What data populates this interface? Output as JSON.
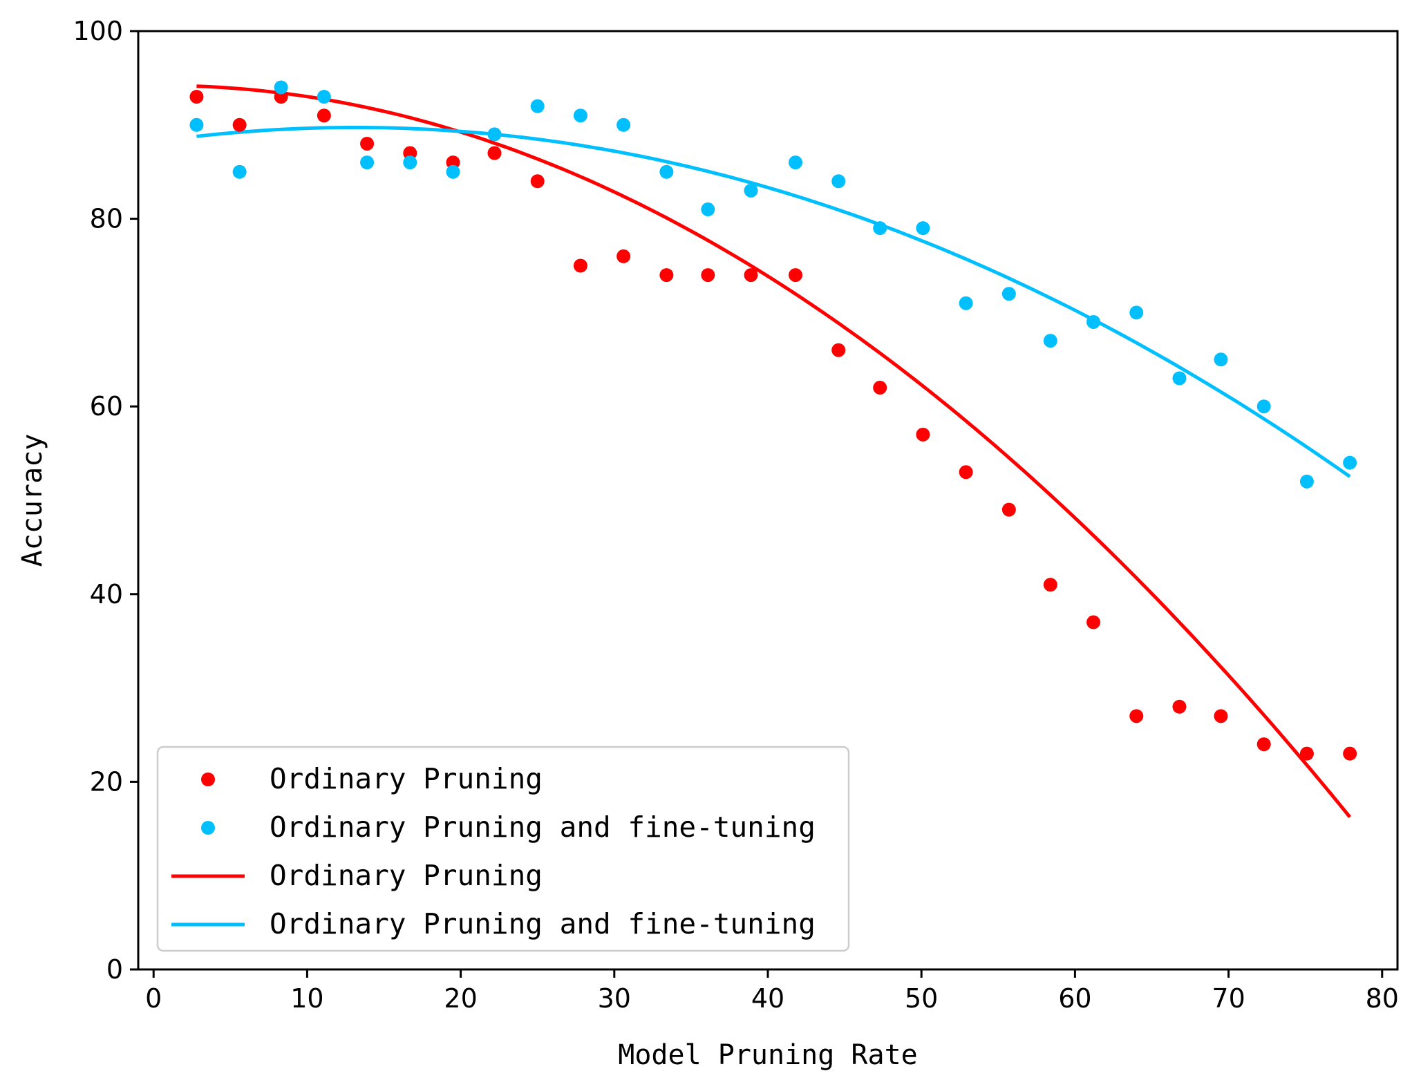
{
  "chart_data": {
    "type": "scatter",
    "title": "",
    "xlabel": "Model Pruning Rate",
    "ylabel": "Accuracy",
    "xlim": [
      -1,
      81
    ],
    "ylim": [
      0,
      100
    ],
    "xticks": [
      0,
      10,
      20,
      30,
      40,
      50,
      60,
      70,
      80
    ],
    "yticks": [
      0,
      20,
      40,
      60,
      80,
      100
    ],
    "grid": false,
    "legend_position": "lower-left",
    "colors": {
      "ordinary": "#ff0000",
      "finetune": "#00bfff"
    },
    "x": [
      2.8,
      5.6,
      8.3,
      11.1,
      13.9,
      16.7,
      19.5,
      22.2,
      25.0,
      27.8,
      30.6,
      33.4,
      36.1,
      38.9,
      41.8,
      44.6,
      47.3,
      50.1,
      52.9,
      55.7,
      58.4,
      61.2,
      64.0,
      66.8,
      69.5,
      72.3,
      75.1,
      77.9
    ],
    "series": [
      {
        "name": "Ordinary Pruning",
        "kind": "scatter",
        "color": "#ff0000",
        "values": [
          93,
          90,
          93,
          91,
          88,
          87,
          86,
          87,
          84,
          75,
          76,
          74,
          74,
          74,
          74,
          66,
          62,
          57,
          53,
          49,
          41,
          37,
          27,
          28,
          27,
          24,
          23,
          23
        ]
      },
      {
        "name": "Ordinary Pruning and fine-tuning",
        "kind": "scatter",
        "color": "#00bfff",
        "values": [
          90,
          85,
          94,
          93,
          86,
          86,
          85,
          89,
          92,
          91,
          90,
          85,
          81,
          83,
          86,
          84,
          79,
          79,
          71,
          72,
          67,
          69,
          70,
          63,
          65,
          60,
          52,
          54
        ]
      },
      {
        "name": "Ordinary Pruning",
        "kind": "line",
        "color": "#ff0000",
        "fit": {
          "x_start": 2.8,
          "x_end": 77.9,
          "coeffs": [
            94.2,
            0.012,
            -0.013
          ]
        }
      },
      {
        "name": "Ordinary Pruning and fine-tuning",
        "kind": "line",
        "color": "#00bfff",
        "fit": {
          "x_start": 2.8,
          "x_end": 77.9,
          "coeffs": [
            88.2,
            0.233,
            -0.00887
          ]
        }
      }
    ],
    "legend": [
      {
        "label": "Ordinary Pruning",
        "marker": "dot",
        "color": "#ff0000"
      },
      {
        "label": "Ordinary Pruning and fine-tuning",
        "marker": "dot",
        "color": "#00bfff"
      },
      {
        "label": "Ordinary Pruning",
        "marker": "line",
        "color": "#ff0000"
      },
      {
        "label": "Ordinary Pruning and fine-tuning",
        "marker": "line",
        "color": "#00bfff"
      }
    ]
  }
}
